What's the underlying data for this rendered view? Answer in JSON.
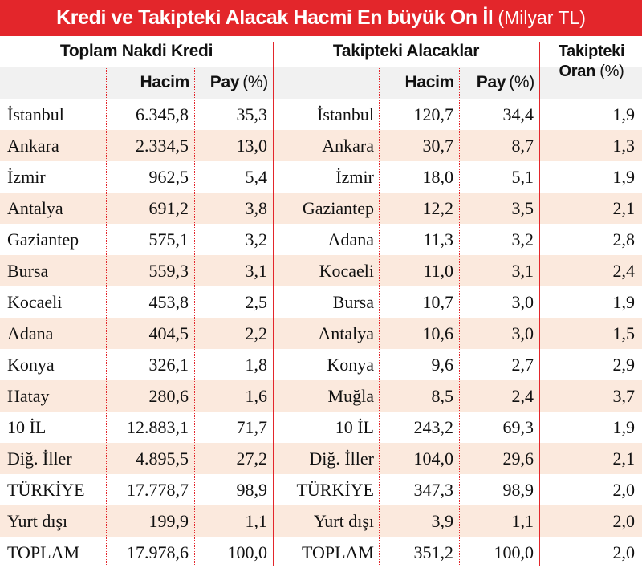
{
  "header": {
    "title": "Kredi ve Takipteki Alacak Hacmi En büyük On İl",
    "unit": "(Milyar TL)"
  },
  "groups": {
    "loans": "Toplam Nakdi Kredi",
    "receivables": "Takipteki Alacaklar",
    "rate_line1": "Takipteki",
    "rate_line2": "Oran",
    "rate_unit": "(%)"
  },
  "subheaders": {
    "volume": "Hacim",
    "share": "Pay",
    "share_unit": "(%)"
  },
  "rows": [
    {
      "city1": "İstanbul",
      "vol1": "6.345,8",
      "pay1": "35,3",
      "city2": "İstanbul",
      "vol2": "120,7",
      "pay2": "34,4",
      "rate": "1,9"
    },
    {
      "city1": "Ankara",
      "vol1": "2.334,5",
      "pay1": "13,0",
      "city2": "Ankara",
      "vol2": "30,7",
      "pay2": "8,7",
      "rate": "1,3"
    },
    {
      "city1": "İzmir",
      "vol1": "962,5",
      "pay1": "5,4",
      "city2": "İzmir",
      "vol2": "18,0",
      "pay2": "5,1",
      "rate": "1,9"
    },
    {
      "city1": "Antalya",
      "vol1": "691,2",
      "pay1": "3,8",
      "city2": "Gaziantep",
      "vol2": "12,2",
      "pay2": "3,5",
      "rate": "2,1"
    },
    {
      "city1": "Gaziantep",
      "vol1": "575,1",
      "pay1": "3,2",
      "city2": "Adana",
      "vol2": "11,3",
      "pay2": "3,2",
      "rate": "2,8"
    },
    {
      "city1": "Bursa",
      "vol1": "559,3",
      "pay1": "3,1",
      "city2": "Kocaeli",
      "vol2": "11,0",
      "pay2": "3,1",
      "rate": "2,4"
    },
    {
      "city1": "Kocaeli",
      "vol1": "453,8",
      "pay1": "2,5",
      "city2": "Bursa",
      "vol2": "10,7",
      "pay2": "3,0",
      "rate": "1,9"
    },
    {
      "city1": "Adana",
      "vol1": "404,5",
      "pay1": "2,2",
      "city2": "Antalya",
      "vol2": "10,6",
      "pay2": "3,0",
      "rate": "1,5"
    },
    {
      "city1": "Konya",
      "vol1": "326,1",
      "pay1": "1,8",
      "city2": "Konya",
      "vol2": "9,6",
      "pay2": "2,7",
      "rate": "2,9"
    },
    {
      "city1": "Hatay",
      "vol1": "280,6",
      "pay1": "1,6",
      "city2": "Muğla",
      "vol2": "8,5",
      "pay2": "2,4",
      "rate": "3,7"
    },
    {
      "city1": "10 İL",
      "vol1": "12.883,1",
      "pay1": "71,7",
      "city2": "10 İL",
      "vol2": "243,2",
      "pay2": "69,3",
      "rate": "1,9"
    },
    {
      "city1": "Diğ. İller",
      "vol1": "4.895,5",
      "pay1": "27,2",
      "city2": "Diğ. İller",
      "vol2": "104,0",
      "pay2": "29,6",
      "rate": "2,1"
    },
    {
      "city1": "TÜRKİYE",
      "vol1": "17.778,7",
      "pay1": "98,9",
      "city2": "TÜRKİYE",
      "vol2": "347,3",
      "pay2": "98,9",
      "rate": "2,0"
    },
    {
      "city1": "Yurt dışı",
      "vol1": "199,9",
      "pay1": "1,1",
      "city2": "Yurt dışı",
      "vol2": "3,9",
      "pay2": "1,1",
      "rate": "2,0"
    },
    {
      "city1": "TOPLAM",
      "vol1": "17.978,6",
      "pay1": "100,0",
      "city2": "TOPLAM",
      "vol2": "351,2",
      "pay2": "100,0",
      "rate": "2,0"
    }
  ],
  "colors": {
    "accent": "#e3262b",
    "row_alt": "#fbe9dd",
    "subhead_bg": "#f1f1f1"
  }
}
